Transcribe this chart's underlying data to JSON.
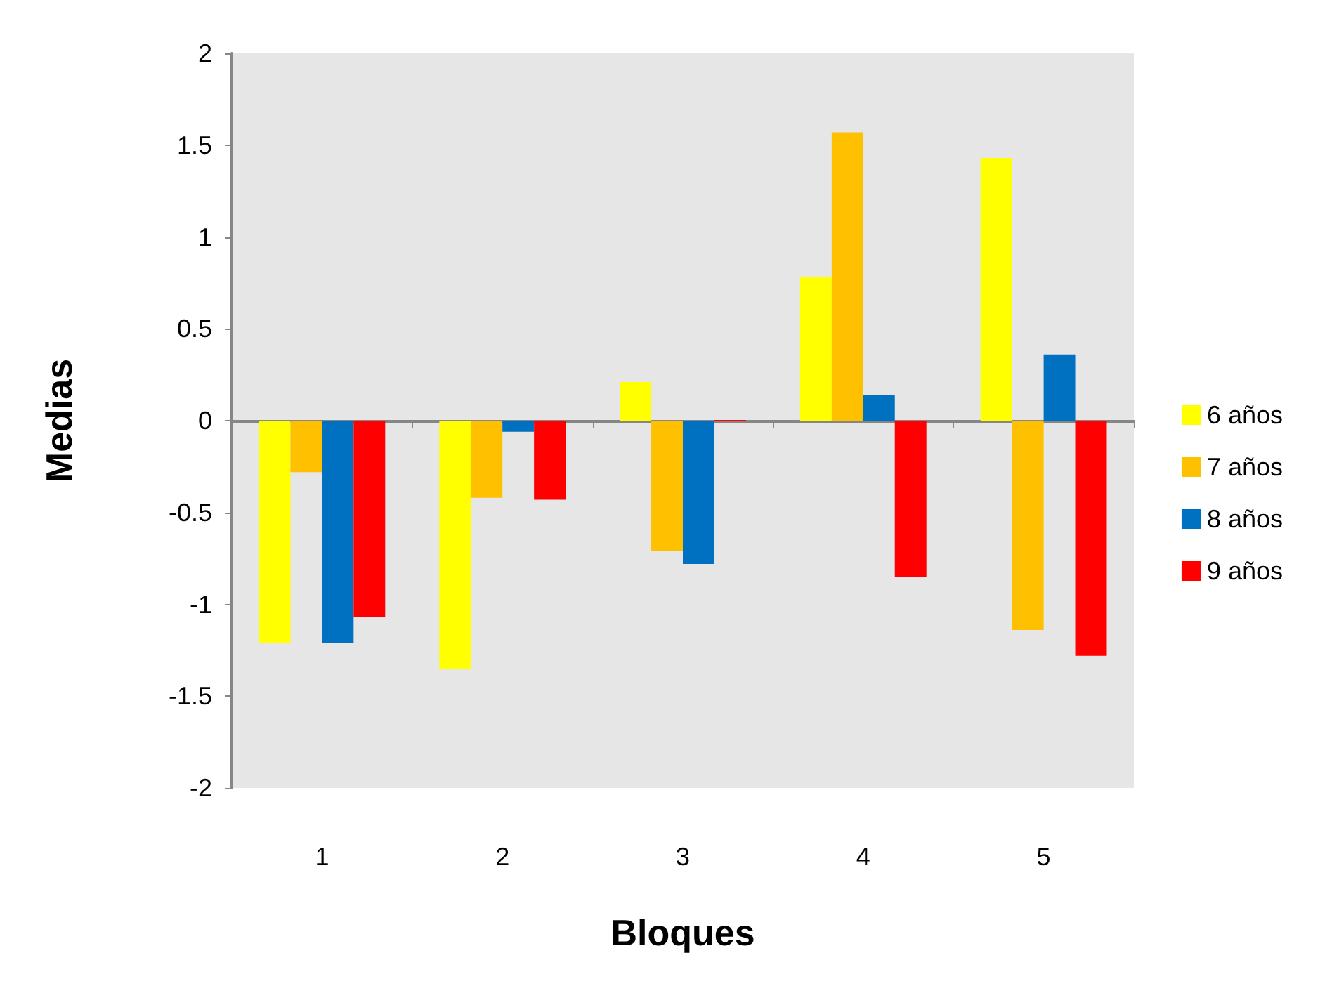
{
  "chart_data": {
    "type": "bar",
    "xlabel": "Bloques",
    "ylabel": "Medias",
    "categories": [
      "1",
      "2",
      "3",
      "4",
      "5"
    ],
    "series": [
      {
        "name": "6 años",
        "color": "#ffff00",
        "values": [
          -1.21,
          -1.35,
          0.21,
          0.78,
          1.43
        ]
      },
      {
        "name": "7 años",
        "color": "#ffc000",
        "values": [
          -0.28,
          -0.42,
          -0.71,
          1.57,
          -1.14
        ]
      },
      {
        "name": "8 años",
        "color": "#0070c0",
        "values": [
          -1.21,
          -0.06,
          -0.78,
          0.14,
          0.36
        ]
      },
      {
        "name": "9 años",
        "color": "#ff0000",
        "values": [
          -1.07,
          -0.43,
          0,
          -0.85,
          -1.28
        ]
      }
    ],
    "ylim": [
      -2,
      2
    ],
    "yticks": [
      -2,
      -1.5,
      -1,
      -0.5,
      0,
      0.5,
      1,
      1.5,
      2
    ],
    "legend": "right"
  }
}
